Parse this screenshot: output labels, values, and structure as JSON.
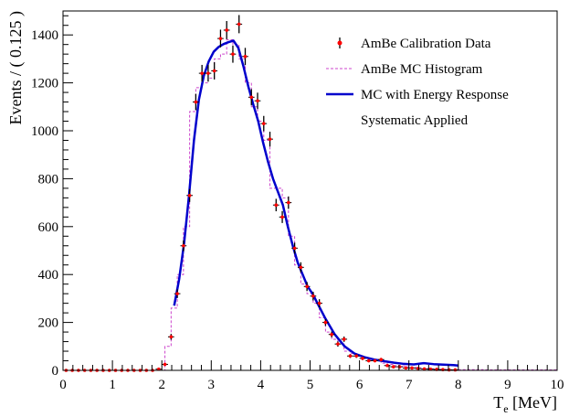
{
  "chart_data": {
    "type": "scatter",
    "xlabel": "T",
    "xlabel_sub": "e",
    "xlabel_unit": " [MeV]",
    "ylabel": "Events / ( 0.125 )",
    "xlim": [
      0,
      10
    ],
    "ylim": [
      0,
      1500
    ],
    "xticks": [
      "0",
      "1",
      "2",
      "3",
      "4",
      "5",
      "6",
      "7",
      "8",
      "9",
      "10"
    ],
    "yticks": [
      "0",
      "200",
      "400",
      "600",
      "800",
      "1000",
      "1200",
      "1400"
    ],
    "grid": false,
    "legend_position": "top-right",
    "colors": {
      "data_marker": "#ff0000",
      "data_error": "#000000",
      "mc_hist": "#cc44cc",
      "mc_response": "#0000cc"
    },
    "legend": [
      {
        "label": "AmBe Calibration Data",
        "style": "marker"
      },
      {
        "label": "AmBe MC Histogram",
        "style": "dashed"
      },
      {
        "label": "MC with Energy Response",
        "style": "line"
      },
      {
        "label": "Systematic Applied",
        "style": "none"
      }
    ],
    "series": [
      {
        "name": "AmBe Calibration Data",
        "kind": "points",
        "x": [
          0.0625,
          0.1875,
          0.3125,
          0.4375,
          0.5625,
          0.6875,
          0.8125,
          0.9375,
          1.0625,
          1.1875,
          1.3125,
          1.4375,
          1.5625,
          1.6875,
          1.8125,
          1.9375,
          2.0625,
          2.1875,
          2.3125,
          2.4375,
          2.5625,
          2.6875,
          2.8125,
          2.9375,
          3.0625,
          3.1875,
          3.3125,
          3.4375,
          3.5625,
          3.6875,
          3.8125,
          3.9375,
          4.0625,
          4.1875,
          4.3125,
          4.4375,
          4.5625,
          4.6875,
          4.8125,
          4.9375,
          5.0625,
          5.1875,
          5.3125,
          5.4375,
          5.5625,
          5.6875,
          5.8125,
          5.9375,
          6.0625,
          6.1875,
          6.3125,
          6.4375,
          6.5625,
          6.6875,
          6.8125,
          6.9375,
          7.0625,
          7.1875,
          7.3125,
          7.4375,
          7.5625,
          7.6875,
          7.8125,
          7.9375
        ],
        "y": [
          0,
          0,
          0,
          0,
          0,
          0,
          0,
          0,
          0,
          0,
          0,
          0,
          0,
          0,
          0,
          5,
          25,
          140,
          320,
          520,
          730,
          1120,
          1240,
          1240,
          1250,
          1385,
          1420,
          1320,
          1445,
          1310,
          1140,
          1125,
          1030,
          965,
          690,
          640,
          700,
          510,
          430,
          350,
          310,
          280,
          200,
          150,
          110,
          130,
          60,
          60,
          50,
          40,
          40,
          45,
          20,
          15,
          15,
          10,
          10,
          8,
          6,
          5,
          4,
          3,
          2,
          2
        ],
        "yerr": [
          0,
          0,
          0,
          0,
          0,
          0,
          0,
          0,
          0,
          0,
          0,
          0,
          0,
          0,
          0,
          2,
          5,
          12,
          18,
          23,
          27,
          34,
          35,
          35,
          36,
          37,
          38,
          36,
          38,
          36,
          34,
          34,
          32,
          31,
          26,
          25,
          26,
          23,
          21,
          19,
          18,
          17,
          14,
          12,
          11,
          11,
          8,
          8,
          7,
          6,
          6,
          7,
          5,
          4,
          4,
          3,
          3,
          3,
          2,
          2,
          2,
          2,
          1,
          1
        ]
      },
      {
        "name": "AmBe MC Histogram",
        "kind": "histogram",
        "edges": [
          1.9375,
          2.0625,
          2.1875,
          2.3125,
          2.4375,
          2.5625,
          2.6875,
          2.8125,
          2.9375,
          3.0625,
          3.1875,
          3.3125,
          3.4375,
          3.5625,
          3.6875,
          3.8125,
          3.9375,
          4.0625,
          4.1875,
          4.3125,
          4.4375,
          4.5625,
          4.6875,
          4.8125,
          4.9375,
          5.0625,
          5.1875,
          5.3125,
          5.4375,
          5.5625,
          5.6875,
          5.8125,
          5.9375,
          6.0625,
          6.1875,
          6.3125,
          6.4375,
          6.5625,
          6.6875,
          6.8125,
          6.9375,
          7.0625,
          7.1875,
          7.3125,
          7.4375,
          7.5625,
          7.6875,
          7.8125,
          7.9375,
          8.5,
          9.0,
          9.5,
          10.0
        ],
        "values": [
          0,
          100,
          260,
          400,
          600,
          1080,
          1180,
          1200,
          1220,
          1300,
          1320,
          1380,
          1360,
          1300,
          1200,
          1100,
          1040,
          960,
          760,
          760,
          720,
          560,
          440,
          360,
          320,
          280,
          220,
          160,
          130,
          110,
          80,
          70,
          60,
          50,
          45,
          40,
          30,
          25,
          20,
          18,
          15,
          12,
          10,
          8,
          6,
          5,
          4,
          3,
          3,
          2,
          2,
          2
        ]
      },
      {
        "name": "MC with Energy Response",
        "kind": "curve",
        "x": [
          2.25,
          2.35,
          2.45,
          2.55,
          2.65,
          2.75,
          2.85,
          2.95,
          3.05,
          3.15,
          3.25,
          3.35,
          3.45,
          3.55,
          3.65,
          3.75,
          3.85,
          3.95,
          4.05,
          4.15,
          4.25,
          4.35,
          4.45,
          4.55,
          4.65,
          4.75,
          4.85,
          4.95,
          5.05,
          5.15,
          5.3,
          5.5,
          5.7,
          5.9,
          6.1,
          6.3,
          6.5,
          6.7,
          6.9,
          7.1,
          7.3,
          7.5,
          7.7,
          7.9,
          8.0
        ],
        "y": [
          270,
          380,
          530,
          730,
          960,
          1130,
          1230,
          1290,
          1330,
          1350,
          1362,
          1370,
          1376,
          1345,
          1270,
          1185,
          1110,
          1040,
          950,
          870,
          800,
          745,
          690,
          600,
          520,
          450,
          400,
          350,
          320,
          280,
          220,
          150,
          100,
          70,
          55,
          45,
          38,
          32,
          27,
          25,
          30,
          26,
          24,
          22,
          20
        ]
      }
    ]
  }
}
